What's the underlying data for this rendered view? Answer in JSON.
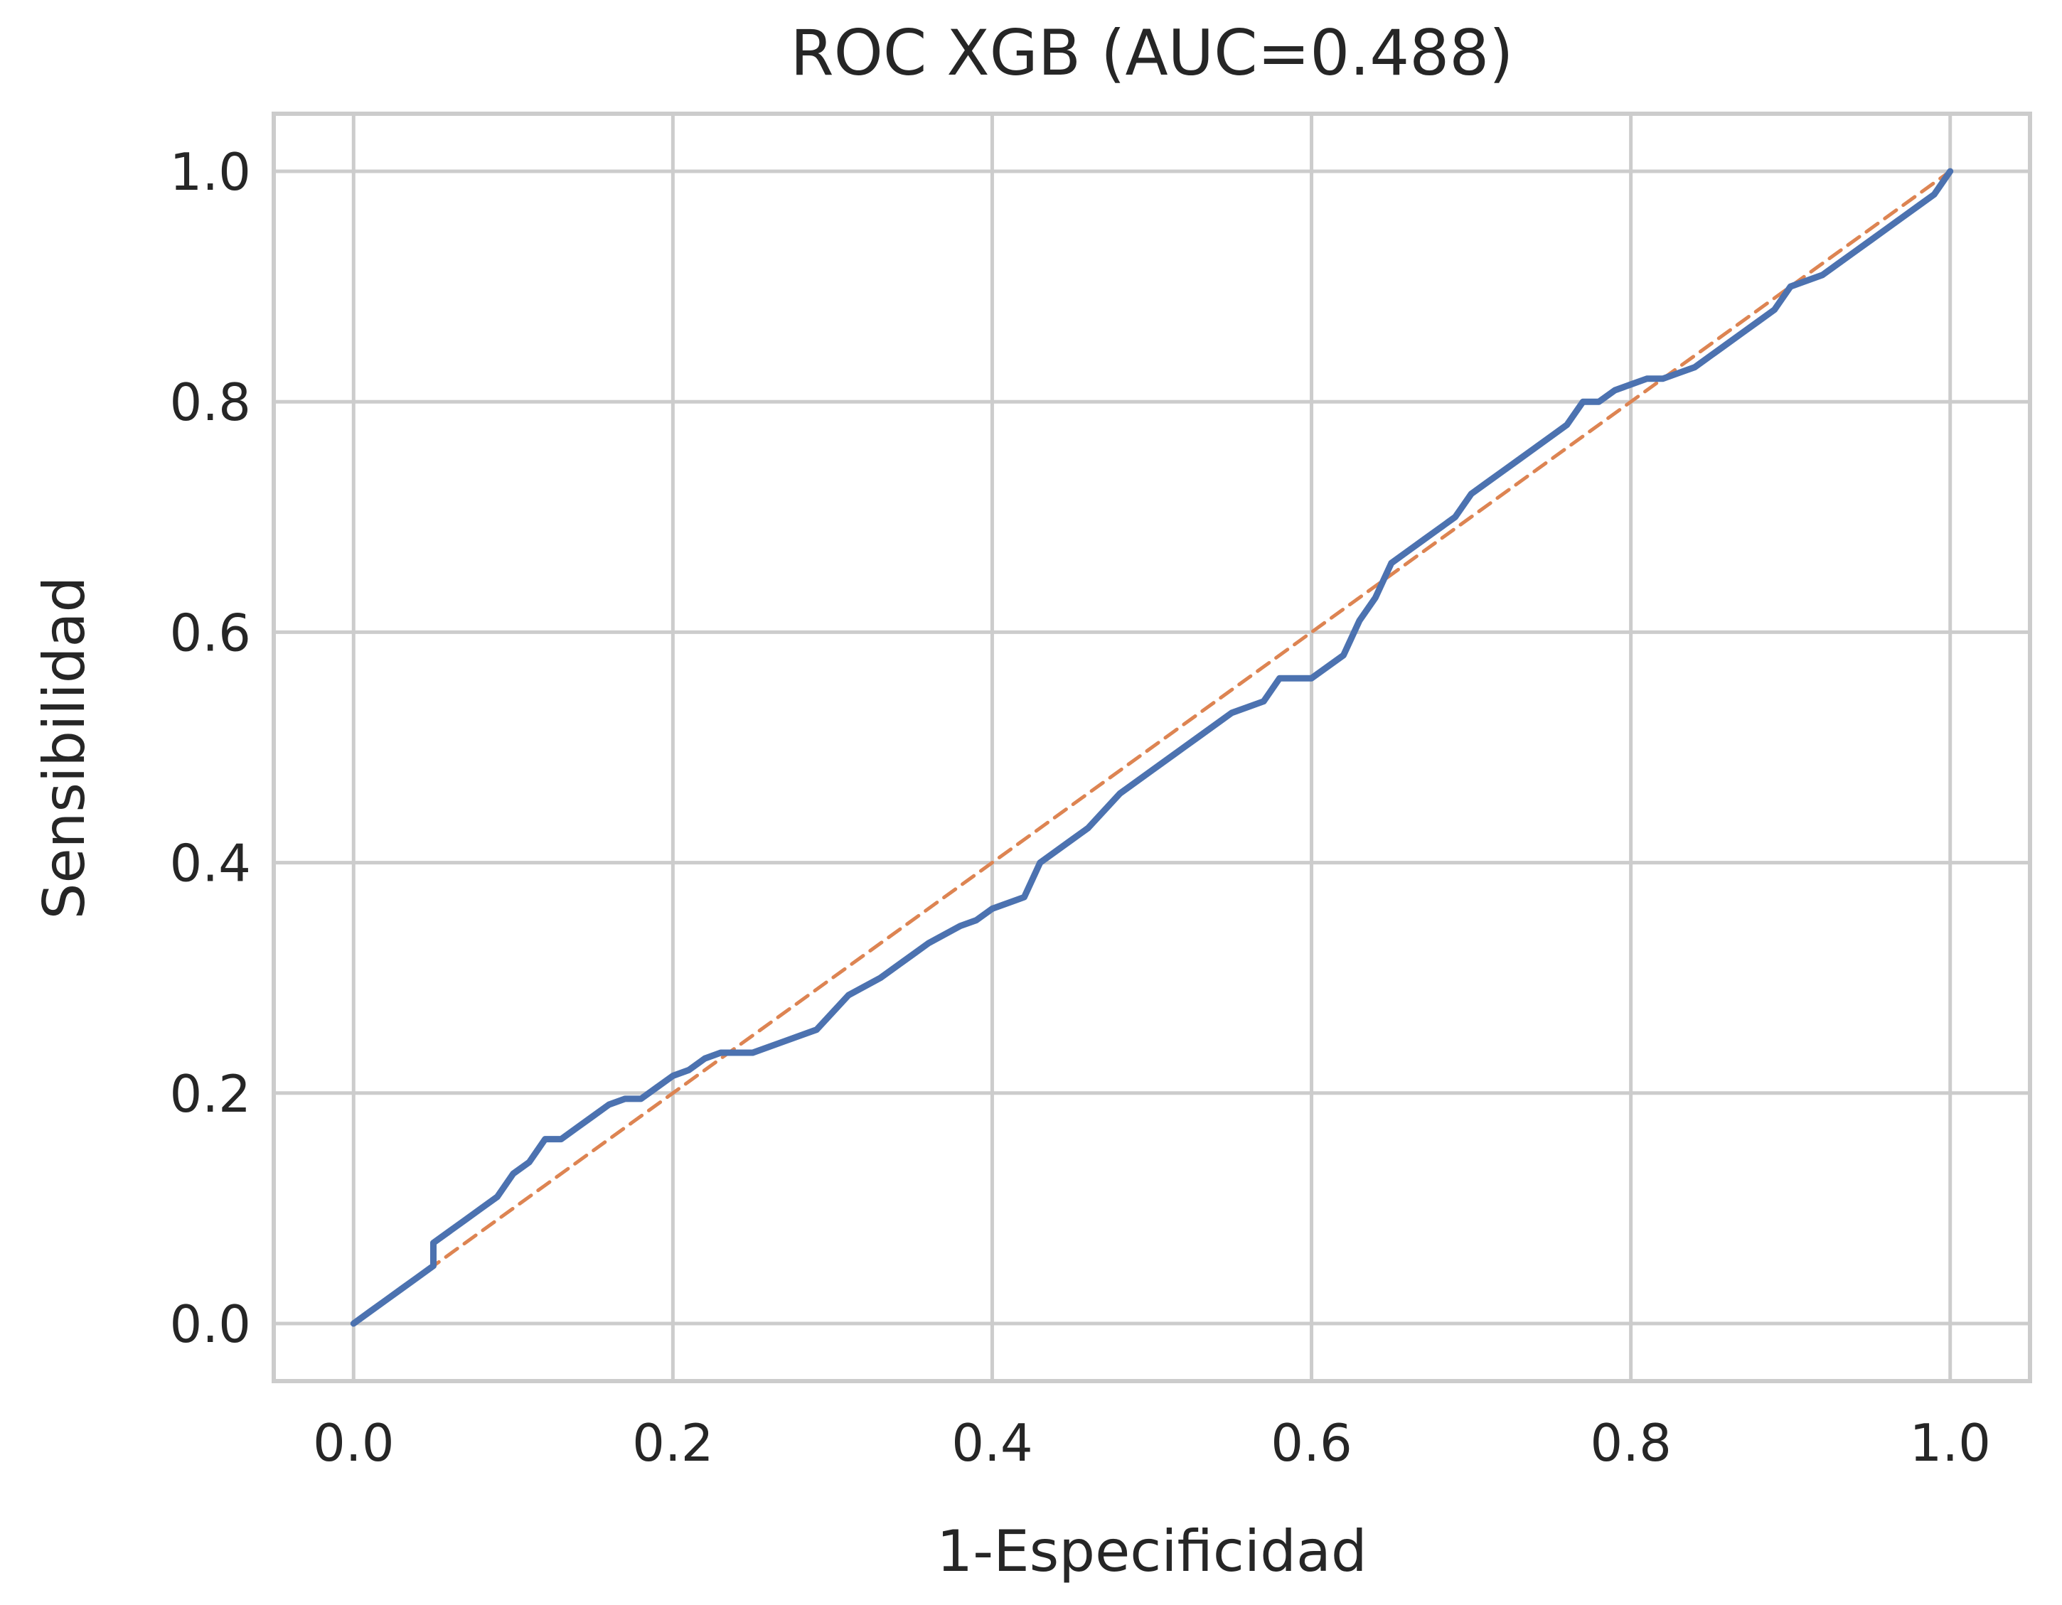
{
  "chart_data": {
    "type": "line",
    "title": "ROC XGB (AUC=0.488)",
    "xlabel": "1-Especificidad",
    "ylabel": "Sensibilidad",
    "xlim": [
      -0.05,
      1.05
    ],
    "ylim": [
      -0.05,
      1.05
    ],
    "x_ticks": [
      "0.0",
      "0.2",
      "0.4",
      "0.6",
      "0.8",
      "1.0"
    ],
    "y_ticks": [
      "0.0",
      "0.2",
      "0.4",
      "0.6",
      "0.8",
      "1.0"
    ],
    "grid": true,
    "legend": "none",
    "series": [
      {
        "color": "#4c72b0",
        "style": "solid",
        "x": [
          0.0,
          0.01,
          0.02,
          0.03,
          0.04,
          0.05,
          0.05,
          0.06,
          0.07,
          0.08,
          0.09,
          0.1,
          0.11,
          0.12,
          0.13,
          0.14,
          0.15,
          0.16,
          0.17,
          0.18,
          0.19,
          0.2,
          0.21,
          0.22,
          0.23,
          0.24,
          0.25,
          0.27,
          0.29,
          0.3,
          0.31,
          0.33,
          0.35,
          0.36,
          0.38,
          0.39,
          0.4,
          0.42,
          0.43,
          0.45,
          0.46,
          0.48,
          0.5,
          0.52,
          0.53,
          0.55,
          0.57,
          0.58,
          0.6,
          0.62,
          0.63,
          0.64,
          0.65,
          0.66,
          0.67,
          0.68,
          0.69,
          0.7,
          0.71,
          0.72,
          0.73,
          0.74,
          0.75,
          0.76,
          0.77,
          0.78,
          0.79,
          0.8,
          0.81,
          0.82,
          0.83,
          0.84,
          0.85,
          0.86,
          0.87,
          0.88,
          0.89,
          0.9,
          0.91,
          0.92,
          0.93,
          0.94,
          0.95,
          0.96,
          0.97,
          0.98,
          0.99,
          1.0
        ],
        "y": [
          0.0,
          0.01,
          0.02,
          0.03,
          0.04,
          0.05,
          0.07,
          0.08,
          0.09,
          0.1,
          0.11,
          0.13,
          0.14,
          0.16,
          0.16,
          0.17,
          0.18,
          0.19,
          0.195,
          0.195,
          0.205,
          0.215,
          0.22,
          0.23,
          0.235,
          0.235,
          0.235,
          0.245,
          0.255,
          0.27,
          0.285,
          0.3,
          0.32,
          0.33,
          0.345,
          0.35,
          0.36,
          0.37,
          0.4,
          0.42,
          0.43,
          0.46,
          0.48,
          0.5,
          0.51,
          0.53,
          0.54,
          0.56,
          0.56,
          0.58,
          0.61,
          0.63,
          0.66,
          0.67,
          0.68,
          0.69,
          0.7,
          0.72,
          0.73,
          0.74,
          0.75,
          0.76,
          0.77,
          0.78,
          0.8,
          0.8,
          0.81,
          0.815,
          0.82,
          0.82,
          0.825,
          0.83,
          0.84,
          0.85,
          0.86,
          0.87,
          0.88,
          0.9,
          0.905,
          0.91,
          0.92,
          0.93,
          0.94,
          0.95,
          0.96,
          0.97,
          0.98,
          1.0
        ]
      },
      {
        "color": "#dd8452",
        "style": "dashed",
        "x": [
          0.0,
          1.0
        ],
        "y": [
          0.0,
          1.0
        ]
      }
    ]
  }
}
